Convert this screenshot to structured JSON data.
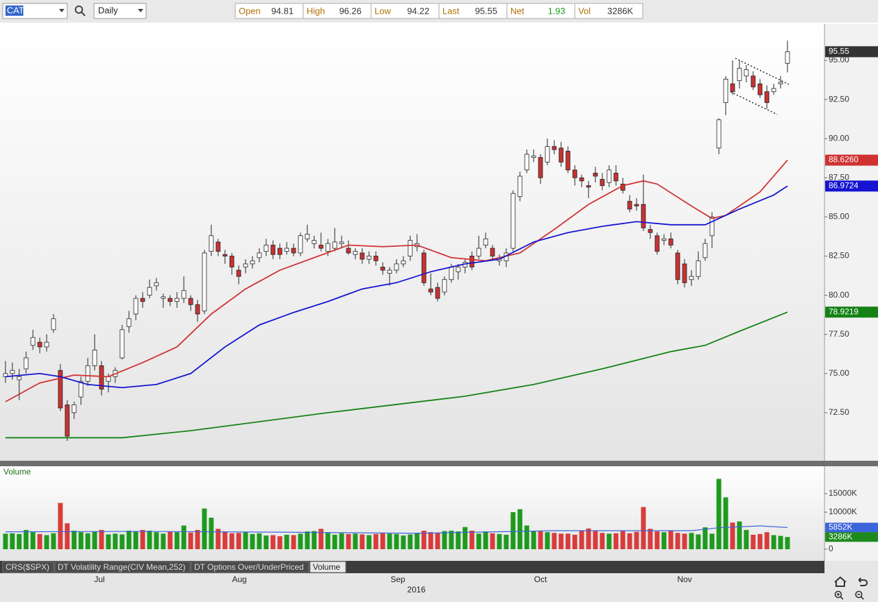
{
  "toolbar": {
    "symbol": "CAT",
    "interval": "Daily",
    "quote": [
      {
        "label": "Open",
        "value": 94.81
      },
      {
        "label": "High",
        "value": 96.26
      },
      {
        "label": "Low",
        "value": 94.22
      },
      {
        "label": "Last",
        "value": 95.55
      },
      {
        "label": "Net",
        "value": 1.93
      },
      {
        "label": "Vol",
        "value": "3286K"
      }
    ]
  },
  "chart_data": {
    "type": "candlestick",
    "candles": [
      [
        74.8,
        75.8,
        74.4,
        75.0
      ],
      [
        75.0,
        75.7,
        74.6,
        75.2
      ],
      [
        74.6,
        75.3,
        73.3,
        74.8
      ],
      [
        75.3,
        76.4,
        75.0,
        76.0
      ],
      [
        76.8,
        77.8,
        76.5,
        77.3
      ],
      [
        77.0,
        77.3,
        76.3,
        76.7
      ],
      [
        76.7,
        77.5,
        76.4,
        77.0
      ],
      [
        77.8,
        78.8,
        77.6,
        78.5
      ],
      [
        75.2,
        75.6,
        72.6,
        72.8
      ],
      [
        73.0,
        73.3,
        70.7,
        71.0
      ],
      [
        72.5,
        73.2,
        72.1,
        73.0
      ],
      [
        73.5,
        74.8,
        73.0,
        74.5
      ],
      [
        74.5,
        76.0,
        74.2,
        75.5
      ],
      [
        75.5,
        77.5,
        75.2,
        76.5
      ],
      [
        75.5,
        75.8,
        73.6,
        74.0
      ],
      [
        74.5,
        75.0,
        73.8,
        74.8
      ],
      [
        74.8,
        75.4,
        74.4,
        75.2
      ],
      [
        76.0,
        78.1,
        75.9,
        77.8
      ],
      [
        78.0,
        79.0,
        77.6,
        78.5
      ],
      [
        78.8,
        80.0,
        78.4,
        79.8
      ],
      [
        79.8,
        80.2,
        79.2,
        79.6
      ],
      [
        80.0,
        81.0,
        79.8,
        80.5
      ],
      [
        80.6,
        81.1,
        80.3,
        80.8
      ],
      [
        79.8,
        80.1,
        79.2,
        79.9
      ],
      [
        79.8,
        80.0,
        79.3,
        79.6
      ],
      [
        79.6,
        80.2,
        79.2,
        79.8
      ],
      [
        79.8,
        81.2,
        79.5,
        80.3
      ],
      [
        79.8,
        80.0,
        79.0,
        79.4
      ],
      [
        79.4,
        79.7,
        78.3,
        78.8
      ],
      [
        79.0,
        82.9,
        78.8,
        82.7
      ],
      [
        82.8,
        84.5,
        82.5,
        83.8
      ],
      [
        83.4,
        83.6,
        82.5,
        82.8
      ],
      [
        82.6,
        82.9,
        82.0,
        82.5
      ],
      [
        82.5,
        82.7,
        81.3,
        81.8
      ],
      [
        81.6,
        81.9,
        80.7,
        81.2
      ],
      [
        81.8,
        82.3,
        81.4,
        82.0
      ],
      [
        82.0,
        82.5,
        81.7,
        82.2
      ],
      [
        82.4,
        83.0,
        82.1,
        82.7
      ],
      [
        82.8,
        83.6,
        82.5,
        83.2
      ],
      [
        83.2,
        83.5,
        82.3,
        82.6
      ],
      [
        83.0,
        83.3,
        82.3,
        82.6
      ],
      [
        82.8,
        83.4,
        82.6,
        83.0
      ],
      [
        83.0,
        83.3,
        82.5,
        82.7
      ],
      [
        82.7,
        84.0,
        82.5,
        83.8
      ],
      [
        83.6,
        84.5,
        83.4,
        83.9
      ],
      [
        83.3,
        83.8,
        83.0,
        83.5
      ],
      [
        83.2,
        84.0,
        82.8,
        83.0
      ],
      [
        82.8,
        83.6,
        82.5,
        83.3
      ],
      [
        83.0,
        84.3,
        82.8,
        83.4
      ],
      [
        83.3,
        83.8,
        83.0,
        83.4
      ],
      [
        83.0,
        83.5,
        82.6,
        82.7
      ],
      [
        82.6,
        83.0,
        82.3,
        82.8
      ],
      [
        82.7,
        83.0,
        82.0,
        82.3
      ],
      [
        82.3,
        82.8,
        82.0,
        82.5
      ],
      [
        82.5,
        82.8,
        81.9,
        82.2
      ],
      [
        81.8,
        82.1,
        81.3,
        81.6
      ],
      [
        81.4,
        81.8,
        80.6,
        81.6
      ],
      [
        81.6,
        82.3,
        81.4,
        82.0
      ],
      [
        82.0,
        82.5,
        81.8,
        82.2
      ],
      [
        82.5,
        83.8,
        82.2,
        83.5
      ],
      [
        83.1,
        83.9,
        82.8,
        83.3
      ],
      [
        82.7,
        82.9,
        80.6,
        80.8
      ],
      [
        80.4,
        81.4,
        80.0,
        80.2
      ],
      [
        80.5,
        80.8,
        79.6,
        79.8
      ],
      [
        80.2,
        81.2,
        80.0,
        81.0
      ],
      [
        81.0,
        82.0,
        80.8,
        81.8
      ],
      [
        81.5,
        82.0,
        81.0,
        81.8
      ],
      [
        81.8,
        82.3,
        81.4,
        82.1
      ],
      [
        82.5,
        82.8,
        81.6,
        81.8
      ],
      [
        82.5,
        83.8,
        82.3,
        83.0
      ],
      [
        83.2,
        84.0,
        83.0,
        83.6
      ],
      [
        83.0,
        83.2,
        82.3,
        82.5
      ],
      [
        82.2,
        82.6,
        81.9,
        82.4
      ],
      [
        82.2,
        83.0,
        81.8,
        82.7
      ],
      [
        83.0,
        86.7,
        82.8,
        86.5
      ],
      [
        86.3,
        87.9,
        86.0,
        87.6
      ],
      [
        88.0,
        89.3,
        87.8,
        89.0
      ],
      [
        88.8,
        89.3,
        88.5,
        88.9
      ],
      [
        88.8,
        89.0,
        87.1,
        87.5
      ],
      [
        88.5,
        90.0,
        88.3,
        89.5
      ],
      [
        89.5,
        89.9,
        89.0,
        89.3
      ],
      [
        89.4,
        89.8,
        88.2,
        88.5
      ],
      [
        89.2,
        89.5,
        87.8,
        88.0
      ],
      [
        88.0,
        88.3,
        87.0,
        87.5
      ],
      [
        87.5,
        87.7,
        86.9,
        87.3
      ],
      [
        87.0,
        87.3,
        86.2,
        86.9
      ],
      [
        87.8,
        88.2,
        87.2,
        87.6
      ],
      [
        87.4,
        87.8,
        86.7,
        87.0
      ],
      [
        87.2,
        88.3,
        86.9,
        88.0
      ],
      [
        87.8,
        88.3,
        87.0,
        87.3
      ],
      [
        87.1,
        87.5,
        86.5,
        86.7
      ],
      [
        86.0,
        86.4,
        85.3,
        85.5
      ],
      [
        85.8,
        86.2,
        85.4,
        85.7
      ],
      [
        85.8,
        87.7,
        84.1,
        84.3
      ],
      [
        84.2,
        84.5,
        83.6,
        84.0
      ],
      [
        83.8,
        84.0,
        82.6,
        82.8
      ],
      [
        83.5,
        83.9,
        83.2,
        83.6
      ],
      [
        83.6,
        84.0,
        83.0,
        83.2
      ],
      [
        82.7,
        82.9,
        80.7,
        81.0
      ],
      [
        82.0,
        82.3,
        80.5,
        80.8
      ],
      [
        81.0,
        81.6,
        80.6,
        81.2
      ],
      [
        81.2,
        82.8,
        81.0,
        82.2
      ],
      [
        82.4,
        83.6,
        82.2,
        83.3
      ],
      [
        83.8,
        85.3,
        83.0,
        85.0
      ],
      [
        89.4,
        91.3,
        89.0,
        91.2
      ],
      [
        92.3,
        94.0,
        91.5,
        93.8
      ],
      [
        93.5,
        95.0,
        92.8,
        93.0
      ],
      [
        93.7,
        95.0,
        93.2,
        94.5
      ],
      [
        94.0,
        94.7,
        93.6,
        94.4
      ],
      [
        94.0,
        94.3,
        93.1,
        93.3
      ],
      [
        93.5,
        93.8,
        92.6,
        92.8
      ],
      [
        93.0,
        93.4,
        91.9,
        92.3
      ],
      [
        93.0,
        93.5,
        92.8,
        93.2
      ],
      [
        93.5,
        94.0,
        93.2,
        93.6
      ],
      [
        94.81,
        96.26,
        94.22,
        95.55
      ]
    ],
    "last_label": "95.55",
    "ylim": [
      69.43,
      97.32
    ],
    "yticks": [
      {
        "value": 95,
        "label": "95.00"
      },
      {
        "value": 92.5,
        "label": "92.50"
      },
      {
        "value": 90,
        "label": "90.00"
      },
      {
        "value": 87.5,
        "label": "87.50"
      },
      {
        "value": 85,
        "label": "85.00"
      },
      {
        "value": 82.5,
        "label": "82.50"
      },
      {
        "value": 80,
        "label": "80.00"
      },
      {
        "value": 77.5,
        "label": "77.50"
      },
      {
        "value": 75,
        "label": "75.00"
      },
      {
        "value": 72.5,
        "label": "72.50"
      }
    ],
    "moving_averages": [
      {
        "color": "#d03232",
        "label": "88.6260",
        "x": [
          0,
          5,
          10,
          15,
          20,
          25,
          30,
          35,
          40,
          45,
          50,
          55,
          60,
          65,
          70,
          75,
          80,
          85,
          90,
          93,
          95,
          100,
          103,
          105,
          110,
          114
        ],
        "values": [
          73.2,
          74.4,
          74.9,
          74.8,
          75.7,
          76.7,
          78.8,
          80.4,
          81.6,
          82.4,
          83.2,
          83.1,
          83.2,
          82.4,
          82.2,
          82.7,
          84.2,
          85.8,
          87.0,
          87.3,
          87.1,
          85.7,
          84.9,
          85.1,
          86.6,
          88.626
        ]
      },
      {
        "color": "#1414d2",
        "label": "86.9724",
        "x": [
          0,
          5,
          8,
          12,
          17,
          22,
          27,
          32,
          37,
          42,
          47,
          52,
          57,
          62,
          67,
          72,
          77,
          82,
          87,
          92,
          97,
          102,
          107,
          112,
          114
        ],
        "values": [
          74.8,
          75.0,
          74.8,
          74.3,
          74.1,
          74.3,
          75.0,
          76.7,
          78.1,
          78.9,
          79.6,
          80.4,
          80.8,
          81.5,
          82.0,
          82.3,
          83.4,
          84.0,
          84.4,
          84.7,
          84.5,
          84.5,
          85.5,
          86.4,
          86.9724
        ]
      },
      {
        "color": "#148214",
        "label": "78.9219",
        "x": [
          0,
          17,
          27,
          47,
          67,
          77,
          87,
          97,
          102,
          107,
          114
        ],
        "values": [
          70.9,
          70.9,
          71.35,
          72.5,
          73.55,
          74.3,
          75.3,
          76.4,
          76.8,
          77.7,
          78.9219
        ]
      }
    ]
  },
  "volume": {
    "title": "Volume",
    "values": [
      4200,
      4300,
      4100,
      5200,
      4600,
      4100,
      3800,
      4300,
      12500,
      7000,
      5000,
      4600,
      4300,
      4800,
      5200,
      4000,
      4200,
      4000,
      5000,
      4800,
      5200,
      5000,
      4600,
      4200,
      4800,
      4600,
      6400,
      4500,
      5200,
      11000,
      8500,
      5500,
      4800,
      4300,
      4400,
      4600,
      4100,
      4300,
      3700,
      3800,
      3500,
      3900,
      3800,
      4200,
      4800,
      4900,
      5500,
      4400,
      3900,
      4300,
      4100,
      4200,
      4000,
      3800,
      4100,
      4300,
      4200,
      4100,
      3700,
      4000,
      4400,
      5000,
      4600,
      4400,
      4900,
      5000,
      4800,
      6000,
      5000,
      4200,
      4800,
      4300,
      4100,
      3900,
      10000,
      10800,
      6400,
      4800,
      4800,
      4600,
      4400,
      4200,
      4200,
      3900,
      5100,
      5600,
      4900,
      4400,
      4200,
      4300,
      5000,
      4300,
      4700,
      11400,
      5500,
      4800,
      4600,
      5100,
      4400,
      4200,
      4400,
      4000,
      5900,
      4200,
      19000,
      14000,
      7200,
      7500,
      5200,
      3900,
      4100,
      4600,
      3800,
      3600,
      3286
    ],
    "last_label": "3286K",
    "ylim": [
      -3150,
      22040
    ],
    "yticks": [
      {
        "value": 15000,
        "label": "15000K"
      },
      {
        "value": 10000,
        "label": "10000K"
      },
      0
    ],
    "average": {
      "color": "#3c64dc",
      "label": "5852K",
      "x": [
        0,
        20,
        40,
        60,
        80,
        100,
        104,
        110,
        114
      ],
      "values": [
        4700,
        4800,
        4600,
        4300,
        5000,
        5000,
        5800,
        6300,
        5852
      ]
    }
  },
  "months": [
    "Jul",
    "Aug",
    "Sep",
    "Oct",
    "Nov"
  ],
  "year": "2016",
  "tabs": [
    "CRS($SPX)",
    "DT Volatility Range(CIV Mean,252)",
    "DT Options Over/UnderPriced",
    "Volume"
  ]
}
